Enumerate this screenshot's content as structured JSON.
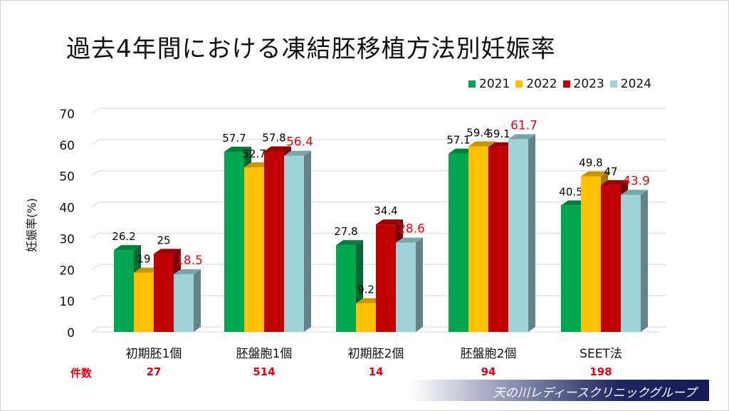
{
  "title": "過去4年間における凍結胚移植方法別妊娠率",
  "footer": {
    "clinic_name": "天の川レディースクリニックグループ"
  },
  "counts": {
    "label": "件数",
    "values": [
      "27",
      "514",
      "14",
      "94",
      "198"
    ],
    "color": "#e60012"
  },
  "chart_data": {
    "type": "bar",
    "title": "過去4年間における凍結胚移植方法別妊娠率",
    "xlabel": "",
    "ylabel": "妊娠率(%)",
    "ylim": [
      0,
      70
    ],
    "yticks": [
      0,
      10,
      20,
      30,
      40,
      50,
      60,
      70
    ],
    "grid": true,
    "legend": "top-right",
    "categories": [
      "初期胚1個",
      "胚盤胞1個",
      "初期胚2個",
      "胚盤胞2個",
      "SEET法"
    ],
    "series": [
      {
        "name": "2021",
        "color": "#00a650",
        "label_color": "#000000",
        "values": [
          26.2,
          57.7,
          27.8,
          57.1,
          40.5
        ],
        "labels": [
          "26.2",
          "57.7",
          "27.8",
          "57.1",
          "40.5"
        ]
      },
      {
        "name": "2022",
        "color": "#ffc000",
        "label_color": "#000000",
        "values": [
          19,
          52.7,
          9.2,
          59.4,
          49.8
        ],
        "labels": [
          "19",
          "52.7",
          "9.2",
          "59.4",
          "49.8"
        ]
      },
      {
        "name": "2023",
        "color": "#c00000",
        "label_color": "#000000",
        "values": [
          25,
          57.8,
          34.4,
          59.1,
          47
        ],
        "labels": [
          "25",
          "57.8",
          "34.4",
          "59.1",
          "47"
        ]
      },
      {
        "name": "2024",
        "color": "#9fd3d8",
        "label_color": "#e60012",
        "values": [
          18.5,
          56.4,
          28.6,
          61.7,
          43.9
        ],
        "labels": [
          "18.5",
          "56.4",
          "28.6",
          "61.7",
          "43.9"
        ]
      }
    ]
  }
}
